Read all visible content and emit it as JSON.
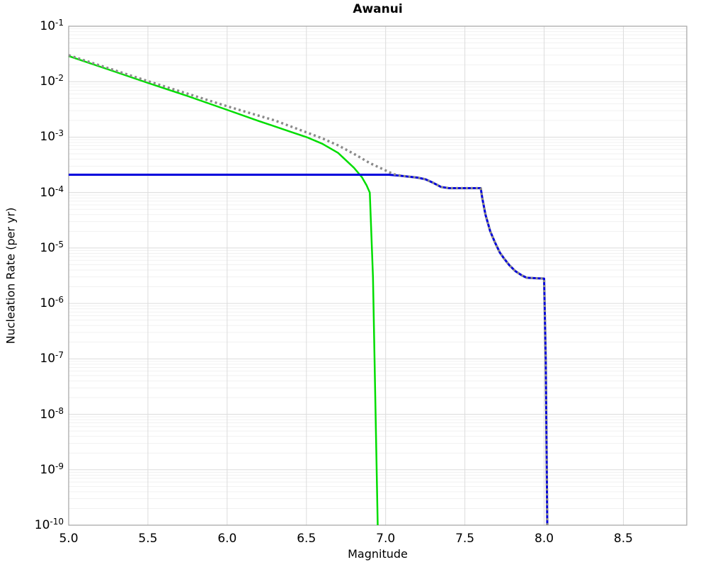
{
  "chart_data": {
    "type": "line",
    "title": "Awanui",
    "xlabel": "Magnitude",
    "ylabel": "Nucleation Rate (per yr)",
    "x_scale": "linear",
    "y_scale": "log",
    "xlim": [
      5.0,
      8.9
    ],
    "ylim": [
      1e-10,
      0.1
    ],
    "x_ticks": [
      {
        "value": 5.0,
        "label": "5.0"
      },
      {
        "value": 5.5,
        "label": "5.5"
      },
      {
        "value": 6.0,
        "label": "6.0"
      },
      {
        "value": 6.5,
        "label": "6.5"
      },
      {
        "value": 7.0,
        "label": "7.0"
      },
      {
        "value": 7.5,
        "label": "7.5"
      },
      {
        "value": 8.0,
        "label": "8.0"
      },
      {
        "value": 8.5,
        "label": "8.5"
      }
    ],
    "y_tick_exponents": [
      -1,
      -2,
      -3,
      -4,
      -5,
      -6,
      -7,
      -8,
      -9,
      -10
    ],
    "grid": {
      "major_color": "#dcdcdc",
      "minor_color": "#f1f1f1",
      "border_color": "#a3a3a3",
      "minor_y": true
    },
    "legend": null,
    "series": [
      {
        "name": "green-solid",
        "color": "#00dd00",
        "style": "solid",
        "width": 2.5,
        "points": [
          [
            5.0,
            0.029
          ],
          [
            5.25,
            0.0166
          ],
          [
            5.5,
            0.0095
          ],
          [
            5.75,
            0.0055
          ],
          [
            6.0,
            0.0031
          ],
          [
            6.2,
            0.00195
          ],
          [
            6.4,
            0.00125
          ],
          [
            6.5,
            0.001
          ],
          [
            6.6,
            0.00076
          ],
          [
            6.7,
            0.00052
          ],
          [
            6.8,
            0.00028
          ],
          [
            6.85,
            0.00019
          ],
          [
            6.88,
            0.000135
          ],
          [
            6.9,
            0.0001
          ],
          [
            6.92,
            3e-06
          ],
          [
            6.95,
            1e-10
          ]
        ]
      },
      {
        "name": "blue-solid",
        "color": "#0000dd",
        "style": "solid",
        "width": 3,
        "points": [
          [
            5.0,
            0.00021
          ],
          [
            7.02,
            0.00021
          ],
          [
            7.1,
            0.0002
          ],
          [
            7.2,
            0.000186
          ],
          [
            7.25,
            0.000174
          ],
          [
            7.3,
            0.00015
          ],
          [
            7.35,
            0.000126
          ],
          [
            7.4,
            0.00012
          ],
          [
            7.6,
            0.00012
          ],
          [
            7.61,
            7.9e-05
          ],
          [
            7.63,
            4e-05
          ],
          [
            7.66,
            2e-05
          ],
          [
            7.69,
            1.26e-05
          ],
          [
            7.72,
            8.3e-06
          ],
          [
            7.75,
            6.3e-06
          ],
          [
            7.78,
            4.9e-06
          ],
          [
            7.82,
            3.8e-06
          ],
          [
            7.86,
            3.2e-06
          ],
          [
            7.89,
            2.9e-06
          ],
          [
            8.0,
            2.8e-06
          ],
          [
            8.01,
            1e-07
          ],
          [
            8.02,
            1e-10
          ]
        ]
      },
      {
        "name": "gray-dotted",
        "color": "#8a8a8a",
        "style": "dotted",
        "width": 3.4,
        "points": [
          [
            5.0,
            0.03
          ],
          [
            5.5,
            0.0102
          ],
          [
            6.0,
            0.0036
          ],
          [
            6.3,
            0.002
          ],
          [
            6.5,
            0.00122
          ],
          [
            6.6,
            0.00095
          ],
          [
            6.7,
            0.00071
          ],
          [
            6.8,
            0.0005
          ],
          [
            6.9,
            0.00034
          ],
          [
            7.0,
            0.00025
          ],
          [
            7.05,
            0.000215
          ],
          [
            7.1,
            0.0002
          ],
          [
            7.2,
            0.000186
          ],
          [
            7.25,
            0.000174
          ],
          [
            7.3,
            0.00015
          ],
          [
            7.35,
            0.000126
          ],
          [
            7.4,
            0.00012
          ],
          [
            7.6,
            0.00012
          ],
          [
            7.61,
            7.9e-05
          ],
          [
            7.63,
            4e-05
          ],
          [
            7.66,
            2e-05
          ],
          [
            7.69,
            1.26e-05
          ],
          [
            7.72,
            8.3e-06
          ],
          [
            7.75,
            6.3e-06
          ],
          [
            7.78,
            4.9e-06
          ],
          [
            7.82,
            3.8e-06
          ],
          [
            7.86,
            3.2e-06
          ],
          [
            7.89,
            2.9e-06
          ],
          [
            8.0,
            2.8e-06
          ],
          [
            8.01,
            1e-07
          ],
          [
            8.02,
            1e-10
          ]
        ]
      }
    ]
  }
}
